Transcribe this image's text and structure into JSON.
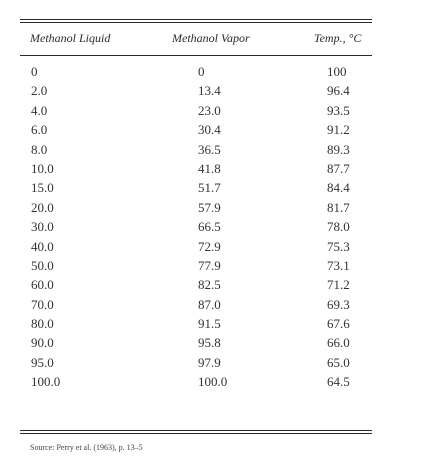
{
  "table": {
    "headers": [
      "Methanol Liquid",
      "Methanol Vapor",
      "Temp., °C"
    ],
    "rows": [
      [
        "0",
        "0",
        "100"
      ],
      [
        "2.0",
        "13.4",
        "96.4"
      ],
      [
        "4.0",
        "23.0",
        "93.5"
      ],
      [
        "6.0",
        "30.4",
        "91.2"
      ],
      [
        "8.0",
        "36.5",
        "89.3"
      ],
      [
        "10.0",
        "41.8",
        "87.7"
      ],
      [
        "15.0",
        "51.7",
        "84.4"
      ],
      [
        "20.0",
        "57.9",
        "81.7"
      ],
      [
        "30.0",
        "66.5",
        "78.0"
      ],
      [
        "40.0",
        "72.9",
        "75.3"
      ],
      [
        "50.0",
        "77.9",
        "73.1"
      ],
      [
        "60.0",
        "82.5",
        "71.2"
      ],
      [
        "70.0",
        "87.0",
        "69.3"
      ],
      [
        "80.0",
        "91.5",
        "67.6"
      ],
      [
        "90.0",
        "95.8",
        "66.0"
      ],
      [
        "95.0",
        "97.9",
        "65.0"
      ],
      [
        "100.0",
        "100.0",
        "64.5"
      ]
    ]
  },
  "footnote": "Source: Perry et al. (1963), p. 13–5"
}
